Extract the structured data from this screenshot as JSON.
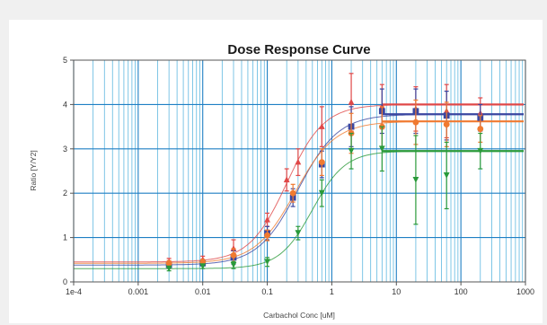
{
  "chart_data": {
    "type": "scatter",
    "title": "Dose Response Curve",
    "xlabel": "Carbachol Conc [uM]",
    "ylabel": "Ratio [Y/Y2]",
    "xscale": "log",
    "xlim": [
      0.0001,
      1000
    ],
    "ylim": [
      0,
      5
    ],
    "grid": true,
    "x_ticks": [
      {
        "value": 0.0001,
        "label": "1e-4"
      },
      {
        "value": 0.001,
        "label": "0.001"
      },
      {
        "value": 0.01,
        "label": "0.01"
      },
      {
        "value": 0.1,
        "label": "0.1"
      },
      {
        "value": 1,
        "label": "1"
      },
      {
        "value": 10,
        "label": "10"
      },
      {
        "value": 100,
        "label": "100"
      },
      {
        "value": 1000,
        "label": "1000"
      }
    ],
    "y_ticks": [
      {
        "value": 0,
        "label": "0"
      },
      {
        "value": 1,
        "label": "1"
      },
      {
        "value": 2,
        "label": "2"
      },
      {
        "value": 3,
        "label": "3"
      },
      {
        "value": 4,
        "label": "4"
      },
      {
        "value": 5,
        "label": "5"
      }
    ],
    "series": [
      {
        "color": "#e04848",
        "marker": "triangle",
        "bottom": 0.45,
        "top": 4.0,
        "ec50": 0.2,
        "hill": 1.5,
        "x": [
          0.003,
          0.01,
          0.03,
          0.1,
          0.2,
          0.3,
          0.7,
          2,
          6,
          20,
          60,
          200
        ],
        "y": [
          0.45,
          0.5,
          0.75,
          1.4,
          2.3,
          2.7,
          3.5,
          4.05,
          3.95,
          3.9,
          3.85,
          3.8
        ],
        "err": [
          0.08,
          0.08,
          0.2,
          0.15,
          0.25,
          0.3,
          0.45,
          0.65,
          0.5,
          0.5,
          0.6,
          0.35
        ]
      },
      {
        "color": "#3a46a0",
        "marker": "square",
        "bottom": 0.38,
        "top": 3.78,
        "ec50": 0.3,
        "hill": 1.4,
        "x": [
          0.003,
          0.01,
          0.03,
          0.1,
          0.25,
          0.7,
          2,
          6,
          20,
          60,
          200
        ],
        "y": [
          0.38,
          0.42,
          0.55,
          1.1,
          1.9,
          2.65,
          3.5,
          3.85,
          3.85,
          3.75,
          3.7
        ],
        "err": [
          0.06,
          0.06,
          0.15,
          0.15,
          0.2,
          0.3,
          0.45,
          0.5,
          0.5,
          0.55,
          0.3
        ]
      },
      {
        "color": "#f07a30",
        "marker": "circle",
        "bottom": 0.42,
        "top": 3.62,
        "ec50": 0.27,
        "hill": 1.4,
        "x": [
          0.003,
          0.01,
          0.03,
          0.1,
          0.25,
          0.7,
          2,
          6,
          20,
          60,
          200
        ],
        "y": [
          0.42,
          0.45,
          0.6,
          1.05,
          2.0,
          2.7,
          3.35,
          3.5,
          3.6,
          3.55,
          3.45
        ],
        "err": [
          0.06,
          0.06,
          0.15,
          0.12,
          0.2,
          0.3,
          0.45,
          0.45,
          0.5,
          0.5,
          0.3
        ]
      },
      {
        "color": "#2a9a3a",
        "marker": "triangle-down",
        "bottom": 0.3,
        "top": 2.95,
        "ec50": 0.5,
        "hill": 1.7,
        "x": [
          0.003,
          0.01,
          0.03,
          0.1,
          0.3,
          0.7,
          2,
          6,
          20,
          60,
          200
        ],
        "y": [
          0.3,
          0.35,
          0.38,
          0.45,
          1.1,
          2.0,
          2.95,
          3.0,
          2.3,
          2.4,
          2.95
        ],
        "err": [
          0.05,
          0.05,
          0.08,
          0.1,
          0.15,
          0.3,
          0.4,
          0.5,
          1.0,
          0.75,
          0.4
        ]
      }
    ]
  }
}
